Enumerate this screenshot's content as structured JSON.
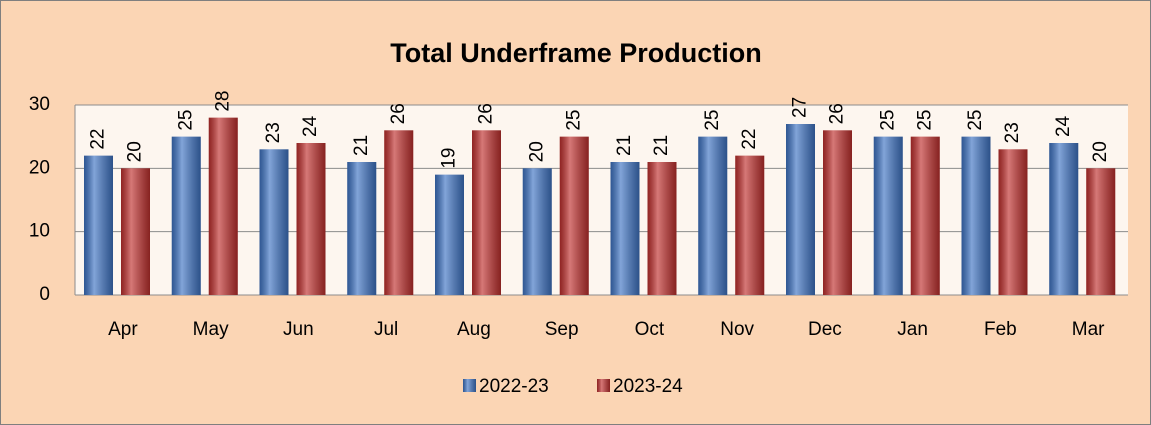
{
  "chart_data": {
    "type": "bar",
    "title": "Total Underframe Production",
    "categories": [
      "Apr",
      "May",
      "Jun",
      "Jul",
      "Aug",
      "Sep",
      "Oct",
      "Nov",
      "Dec",
      "Jan",
      "Feb",
      "Mar"
    ],
    "series": [
      {
        "name": "2022-23",
        "color": "#3f74c4",
        "values": [
          22,
          25,
          23,
          21,
          19,
          20,
          21,
          25,
          27,
          25,
          25,
          24
        ]
      },
      {
        "name": "2023-24",
        "color": "#c0302e",
        "values": [
          20,
          28,
          24,
          26,
          26,
          25,
          21,
          22,
          26,
          25,
          23,
          20
        ]
      }
    ],
    "ylim": [
      0,
      30
    ],
    "yticks": [
      0,
      10,
      20,
      30
    ],
    "grid": true,
    "legend": "bottom"
  }
}
